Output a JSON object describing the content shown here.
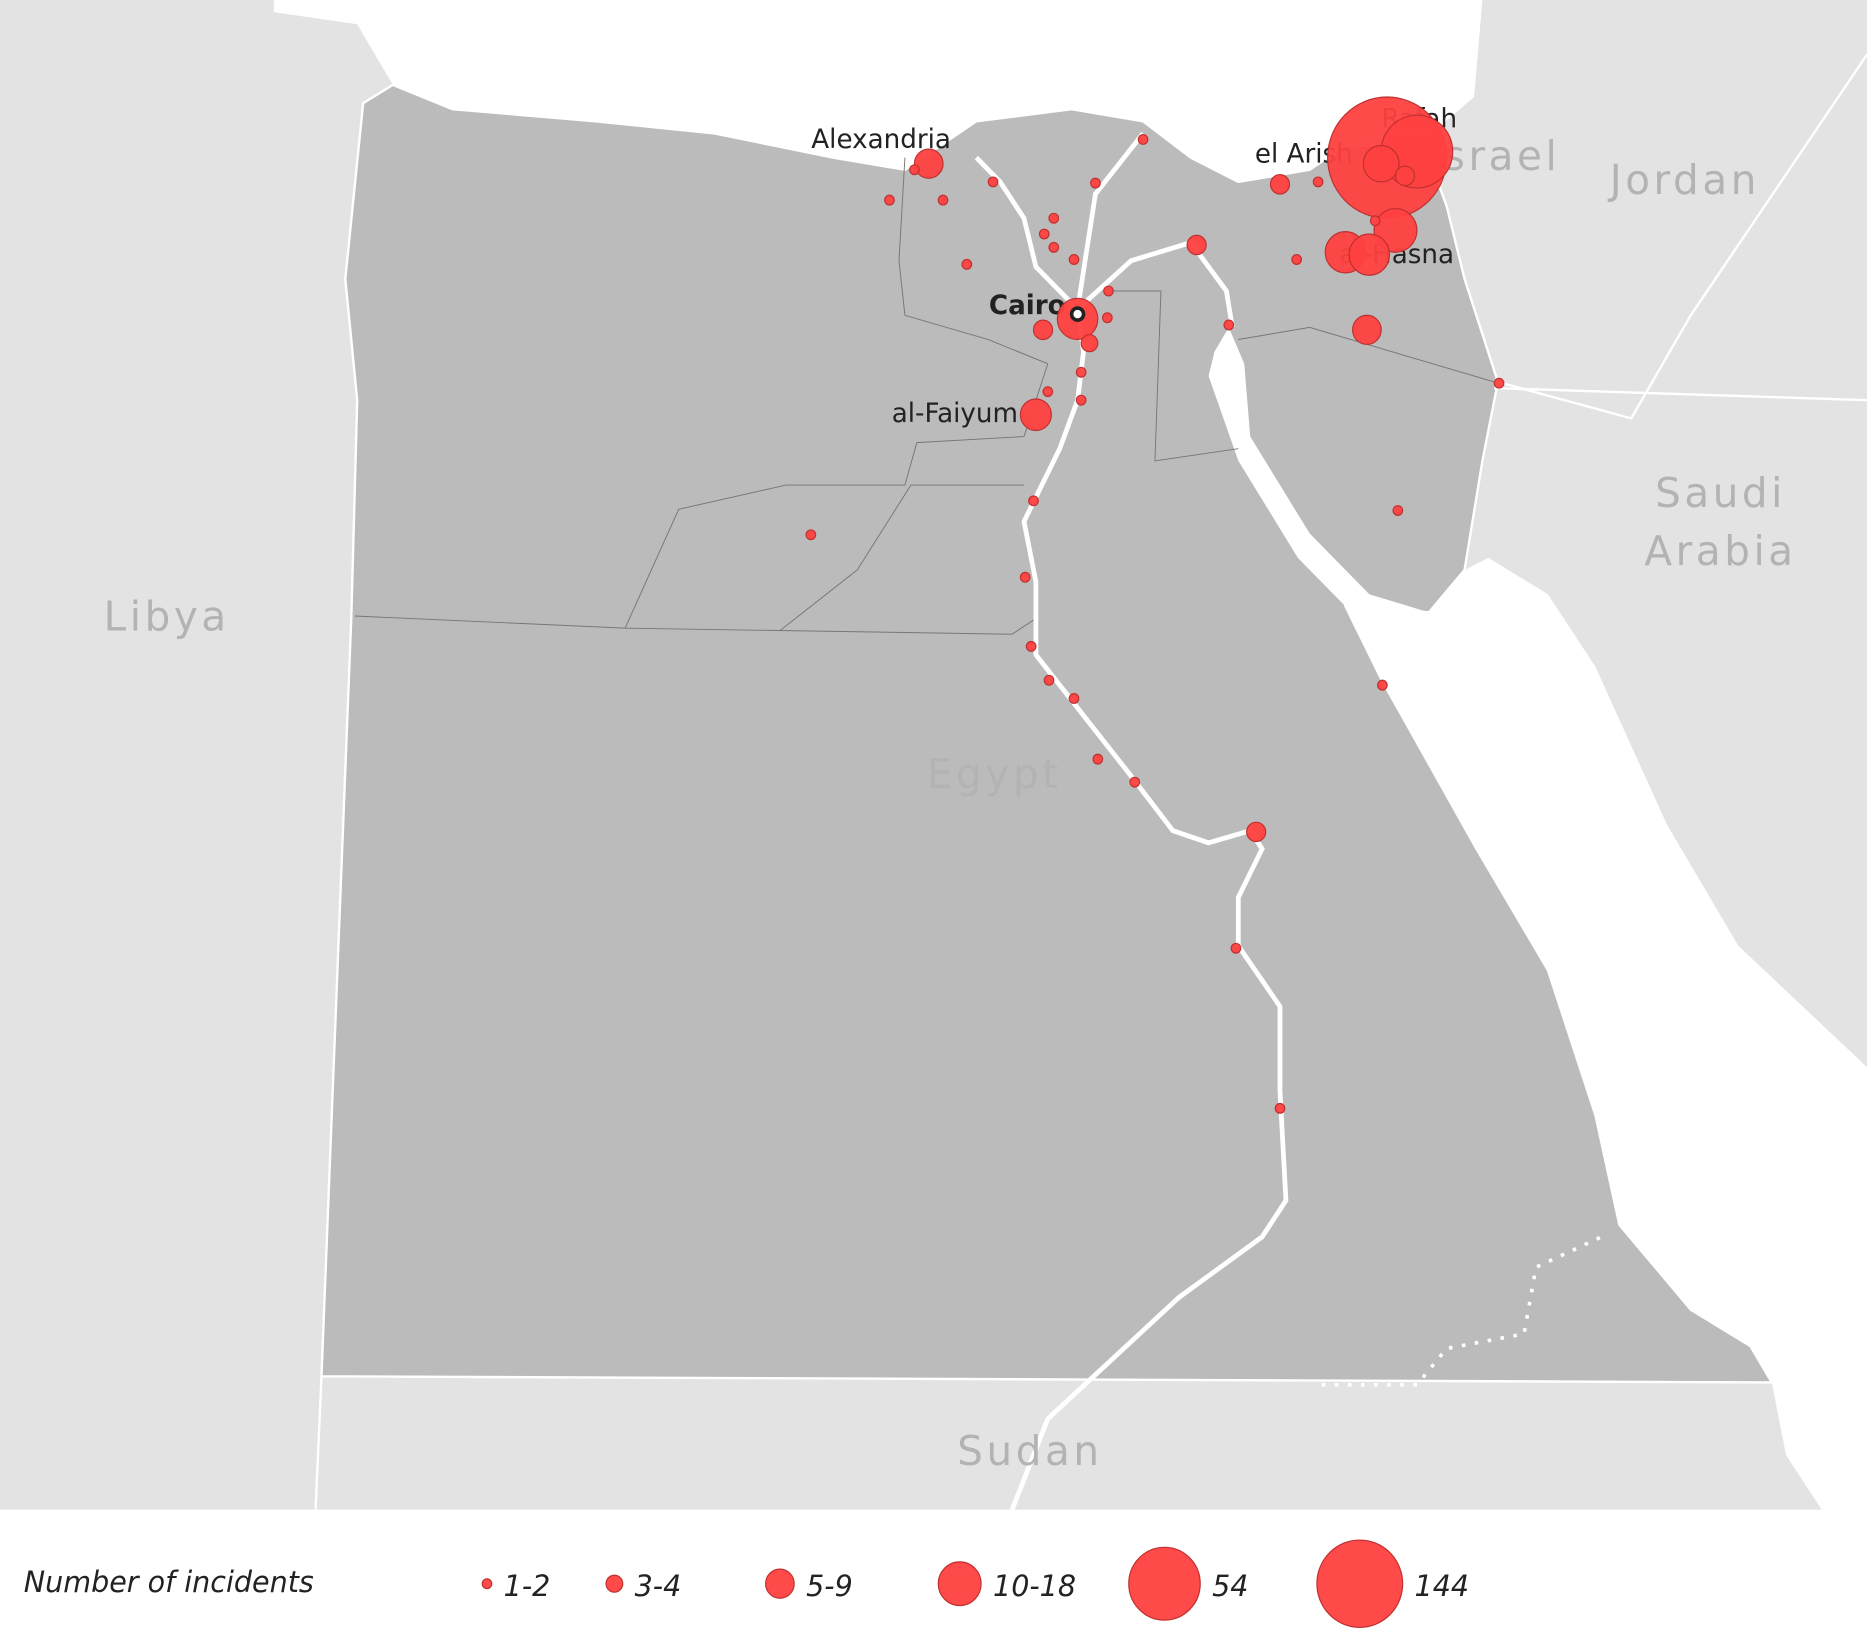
{
  "map": {
    "countries": {
      "libya": "Libya",
      "egypt": "Egypt",
      "sudan": "Sudan",
      "israel": "Israel",
      "jordan": "Jordan",
      "saudi_arabia": [
        "Saudi",
        "Arabia"
      ]
    },
    "cities": {
      "alexandria": "Alexandria",
      "cairo": "Cairo",
      "el_arish": "el Arish",
      "rafah": "Rafah",
      "al_hasna": "al-Hasna",
      "al_faiyum": "al-Faiyum"
    },
    "legend": {
      "title": "Number of incidents",
      "items": [
        "1-2",
        "3-4",
        "5-9",
        "10-18",
        "54",
        "144"
      ]
    }
  }
}
